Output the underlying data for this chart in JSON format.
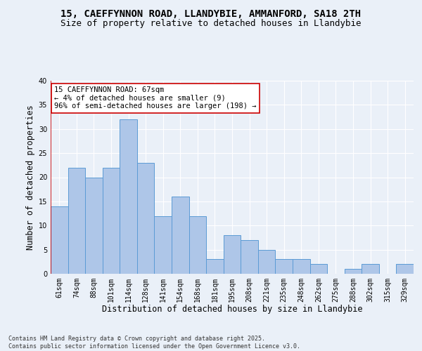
{
  "title_line1": "15, CAEFFYNNON ROAD, LLANDYBIE, AMMANFORD, SA18 2TH",
  "title_line2": "Size of property relative to detached houses in Llandybie",
  "xlabel": "Distribution of detached houses by size in Llandybie",
  "ylabel": "Number of detached properties",
  "bar_values": [
    14,
    22,
    20,
    22,
    32,
    23,
    12,
    16,
    12,
    3,
    8,
    7,
    5,
    3,
    3,
    2,
    0,
    1,
    2,
    0,
    2
  ],
  "bin_labels": [
    "61sqm",
    "74sqm",
    "88sqm",
    "101sqm",
    "114sqm",
    "128sqm",
    "141sqm",
    "154sqm",
    "168sqm",
    "181sqm",
    "195sqm",
    "208sqm",
    "221sqm",
    "235sqm",
    "248sqm",
    "262sqm",
    "275sqm",
    "288sqm",
    "302sqm",
    "315sqm",
    "329sqm"
  ],
  "bar_color": "#aec6e8",
  "bar_edge_color": "#5b9bd5",
  "background_color": "#eaf0f8",
  "grid_color": "#ffffff",
  "annotation_box_text": "15 CAEFFYNNON ROAD: 67sqm\n← 4% of detached houses are smaller (9)\n96% of semi-detached houses are larger (198) →",
  "annotation_box_color": "#ffffff",
  "annotation_box_edge_color": "#cc0000",
  "ylim": [
    0,
    40
  ],
  "yticks": [
    0,
    5,
    10,
    15,
    20,
    25,
    30,
    35,
    40
  ],
  "footer_text": "Contains HM Land Registry data © Crown copyright and database right 2025.\nContains public sector information licensed under the Open Government Licence v3.0.",
  "title_fontsize": 10,
  "subtitle_fontsize": 9,
  "axis_label_fontsize": 8.5,
  "tick_fontsize": 7,
  "annotation_fontsize": 7.5,
  "footer_fontsize": 6
}
